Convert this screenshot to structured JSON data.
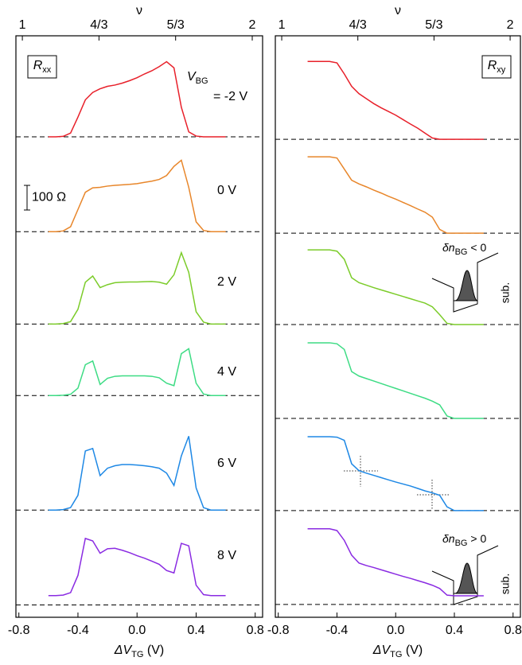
{
  "chart_data": [
    {
      "type": "line",
      "x": [
        -0.6,
        -0.55,
        -0.5,
        -0.45,
        -0.4,
        -0.35,
        -0.3,
        -0.25,
        -0.2,
        -0.15,
        -0.1,
        -0.05,
        0,
        0.05,
        0.1,
        0.15,
        0.2,
        0.25,
        0.3,
        0.35,
        0.4,
        0.45,
        0.5,
        0.55,
        0.6
      ],
      "xlim": [
        -0.82,
        0.85
      ],
      "xticks": [
        -0.8,
        -0.4,
        {
          "value": 0,
          "label": "0.0"
        },
        0.4,
        0.8
      ],
      "xlabel_parts": [
        "ΔV",
        "TG",
        " (V)"
      ],
      "x2lim": [
        0.972,
        2.045
      ],
      "x2ticks": [
        1,
        {
          "value": 1.3333,
          "label": "4/3"
        },
        {
          "value": 1.6667,
          "label": "5/3"
        },
        2
      ],
      "x2label": "ν",
      "ylim": [
        0,
        2360
      ],
      "panel_label_parts": [
        "R",
        "xx"
      ],
      "annotation_parts": [
        "V",
        "BG"
      ],
      "scalebar": {
        "value": 100,
        "label": "100 Ω"
      },
      "series": [
        {
          "name": "= -2 V",
          "color": "#e8202a",
          "offset": 1950,
          "values": [
            0,
            0,
            2,
            15,
            80,
            150,
            180,
            195,
            205,
            210,
            218,
            228,
            240,
            255,
            268,
            285,
            305,
            280,
            120,
            20,
            3,
            0,
            0,
            0,
            0
          ]
        },
        {
          "name": "0 V",
          "color": "#e8862a",
          "offset": 1565,
          "values": [
            0,
            0,
            3,
            20,
            90,
            160,
            178,
            180,
            185,
            188,
            190,
            192,
            195,
            200,
            205,
            212,
            228,
            265,
            290,
            180,
            40,
            5,
            0,
            0,
            0
          ]
        },
        {
          "name": "2 V",
          "color": "#7ccc2a",
          "offset": 1190,
          "values": [
            0,
            0,
            2,
            10,
            60,
            170,
            195,
            148,
            160,
            168,
            170,
            171,
            171,
            172,
            173,
            170,
            162,
            200,
            290,
            210,
            50,
            8,
            0,
            0,
            0
          ]
        },
        {
          "name": "4 V",
          "color": "#3ddc84",
          "offset": 900,
          "values": [
            0,
            0,
            1,
            5,
            30,
            125,
            140,
            45,
            70,
            78,
            80,
            80,
            80,
            80,
            78,
            72,
            50,
            40,
            170,
            190,
            50,
            6,
            0,
            0,
            0
          ]
        },
        {
          "name": "6 V",
          "color": "#1e88e5",
          "offset": 435,
          "values": [
            0,
            0,
            2,
            10,
            60,
            240,
            250,
            140,
            170,
            180,
            185,
            185,
            183,
            180,
            176,
            170,
            150,
            100,
            220,
            300,
            90,
            10,
            0,
            0,
            0
          ]
        },
        {
          "name": "8 V",
          "color": "#8a2be2",
          "offset": 50,
          "values": [
            38,
            38,
            40,
            50,
            120,
            270,
            260,
            210,
            228,
            230,
            222,
            212,
            200,
            190,
            178,
            165,
            140,
            130,
            250,
            240,
            80,
            42,
            38,
            38,
            38
          ]
        }
      ]
    },
    {
      "type": "line",
      "x": [
        -0.6,
        -0.55,
        -0.5,
        -0.45,
        -0.4,
        -0.35,
        -0.3,
        -0.25,
        -0.2,
        -0.15,
        -0.1,
        -0.05,
        0,
        0.05,
        0.1,
        0.15,
        0.2,
        0.25,
        0.3,
        0.35,
        0.4,
        0.45,
        0.5,
        0.55,
        0.6
      ],
      "xlim": [
        -0.82,
        0.85
      ],
      "xticks": [
        -0.8,
        -0.4,
        {
          "value": 0,
          "label": "0.0"
        },
        0.4,
        0.8
      ],
      "xlabel_parts": [
        "ΔV",
        "TG",
        " (V)"
      ],
      "x2lim": [
        0.972,
        2.045
      ],
      "x2ticks": [
        1,
        {
          "value": 1.3333,
          "label": "4/3"
        },
        {
          "value": 1.6667,
          "label": "5/3"
        },
        2
      ],
      "x2label": "ν",
      "ylim": [
        0,
        2360
      ],
      "panel_label_parts": [
        "R",
        "xy"
      ],
      "insets": [
        {
          "parts": [
            "δn",
            "BG",
            " < 0"
          ],
          "side_label": "sub."
        },
        {
          "parts": [
            "δn",
            "BG",
            " > 0"
          ],
          "side_label": "sub."
        }
      ],
      "series": [
        {
          "color": "#e8202a",
          "offset": 1940,
          "values": [
            316,
            316,
            316,
            316,
            310,
            265,
            215,
            185,
            165,
            145,
            128,
            113,
            98,
            80,
            62,
            45,
            25,
            5,
            0,
            0,
            0,
            0,
            0,
            0,
            0
          ]
        },
        {
          "color": "#e8862a",
          "offset": 1559,
          "values": [
            310,
            310,
            310,
            310,
            305,
            260,
            215,
            200,
            188,
            175,
            163,
            150,
            138,
            125,
            112,
            98,
            85,
            65,
            15,
            0,
            0,
            0,
            0,
            0,
            0
          ]
        },
        {
          "color": "#7ccc2a",
          "offset": 1188,
          "values": [
            303,
            303,
            303,
            303,
            298,
            265,
            190,
            170,
            160,
            150,
            141,
            132,
            123,
            114,
            105,
            96,
            87,
            72,
            40,
            5,
            0,
            0,
            0,
            0,
            0
          ]
        },
        {
          "color": "#3ddc84",
          "offset": 807,
          "values": [
            307,
            307,
            307,
            307,
            303,
            280,
            190,
            172,
            162,
            152,
            142,
            132,
            122,
            112,
            102,
            92,
            82,
            70,
            55,
            10,
            0,
            0,
            0,
            0,
            0
          ]
        },
        {
          "color": "#1e88e5",
          "offset": 433,
          "values": [
            300,
            300,
            300,
            300,
            298,
            285,
            190,
            162,
            152,
            143,
            134,
            125,
            116,
            108,
            100,
            90,
            80,
            72,
            62,
            15,
            0,
            0,
            0,
            0,
            0
          ]
        },
        {
          "color": "#8a2be2",
          "offset": 52,
          "values": [
            307,
            307,
            307,
            307,
            300,
            260,
            200,
            168,
            158,
            150,
            141,
            132,
            123,
            114,
            106,
            97,
            88,
            78,
            65,
            38,
            35,
            35,
            35,
            35,
            35
          ]
        }
      ]
    }
  ]
}
